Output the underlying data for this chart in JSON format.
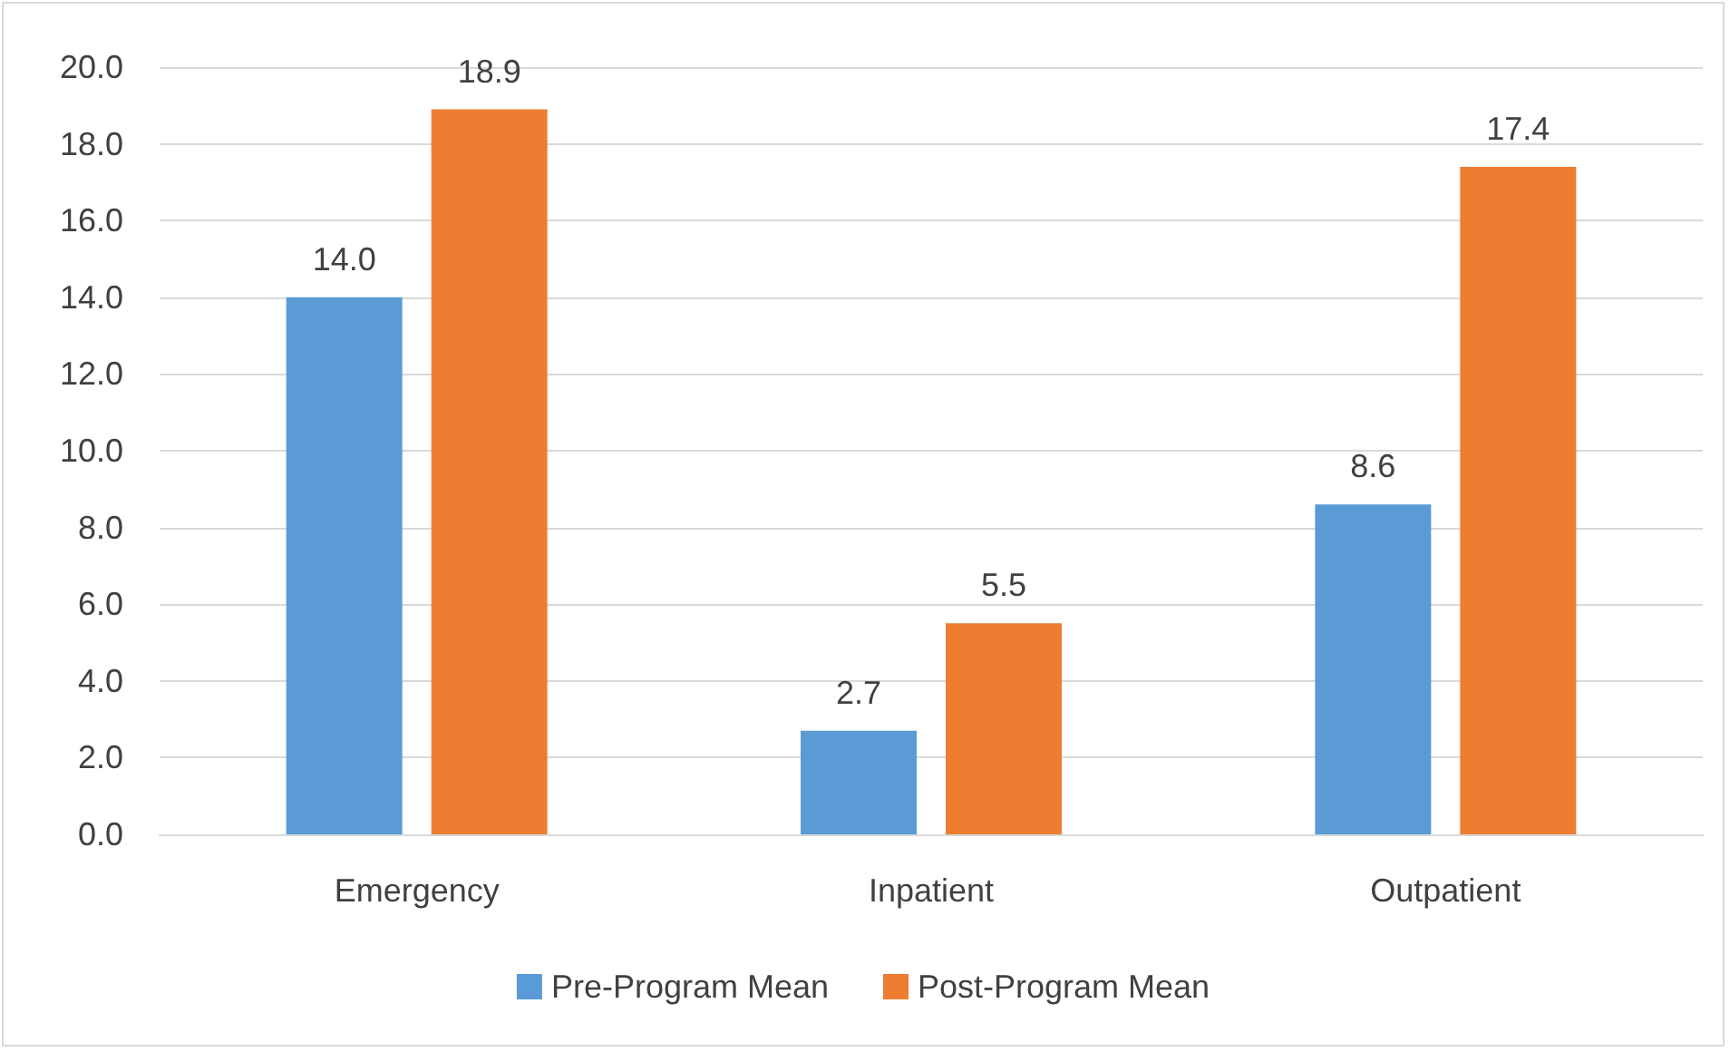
{
  "chart_data": {
    "type": "bar",
    "categories": [
      "Emergency",
      "Inpatient",
      "Outpatient"
    ],
    "series": [
      {
        "name": "Pre-Program Mean",
        "color": "#5b9bd5",
        "values": [
          14.0,
          2.7,
          8.6
        ],
        "value_labels": [
          "14.0",
          "2.7",
          "8.6"
        ]
      },
      {
        "name": "Post-Program Mean",
        "color": "#ed7d31",
        "values": [
          18.9,
          5.5,
          17.4
        ],
        "value_labels": [
          "18.9",
          "5.5",
          "17.4"
        ]
      }
    ],
    "ylim": [
      0,
      20
    ],
    "yticks": [
      {
        "value": 0,
        "label": "0.0"
      },
      {
        "value": 2,
        "label": "2.0"
      },
      {
        "value": 4,
        "label": "4.0"
      },
      {
        "value": 6,
        "label": "6.0"
      },
      {
        "value": 8,
        "label": "8.0"
      },
      {
        "value": 10,
        "label": "10.0"
      },
      {
        "value": 12,
        "label": "12.0"
      },
      {
        "value": 14,
        "label": "14.0"
      },
      {
        "value": 16,
        "label": "16.0"
      },
      {
        "value": 18,
        "label": "18.0"
      },
      {
        "value": 20,
        "label": "20.0"
      }
    ],
    "grid": "y",
    "legend": "bottom"
  }
}
